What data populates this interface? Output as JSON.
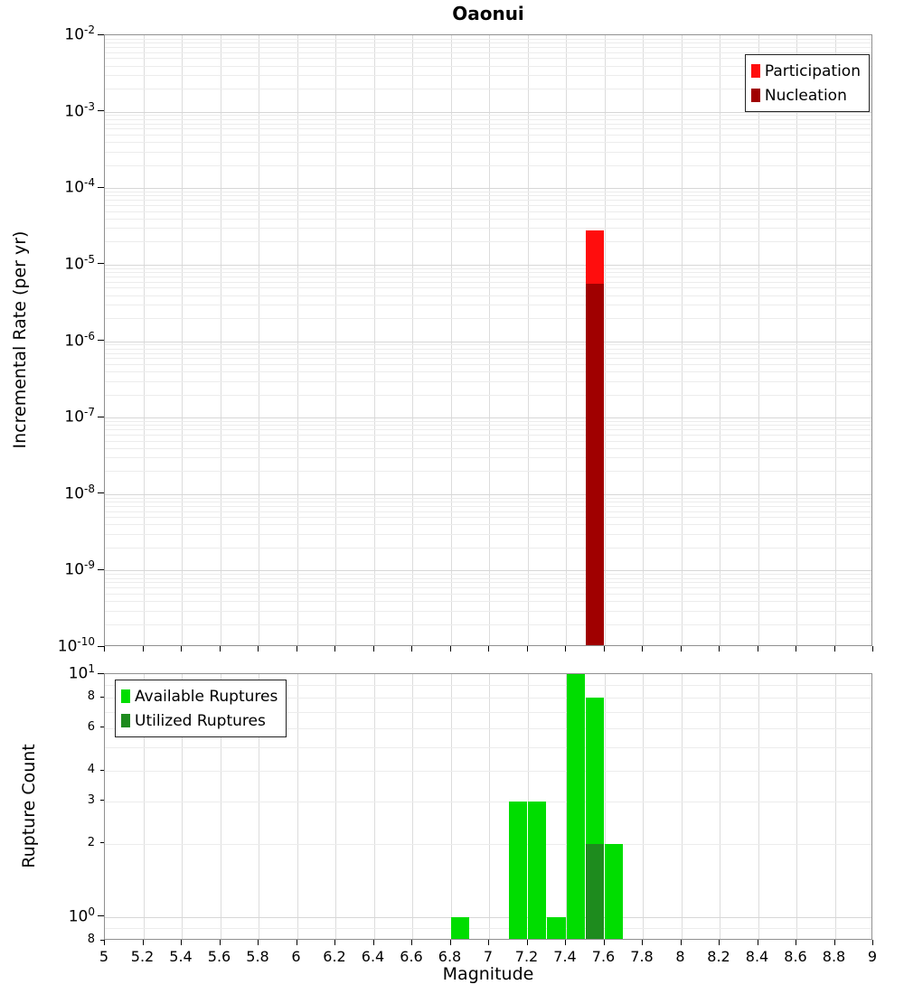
{
  "title": "Oaonui",
  "xlabel": "Magnitude",
  "x_axis": {
    "min": 5,
    "max": 9,
    "tick_step": 0.2,
    "tick_labels": [
      "5",
      "5.2",
      "5.4",
      "5.6",
      "5.8",
      "6",
      "6.2",
      "6.4",
      "6.6",
      "6.8",
      "7",
      "7.2",
      "7.4",
      "7.6",
      "7.8",
      "8",
      "8.2",
      "8.4",
      "8.6",
      "8.8",
      "9"
    ]
  },
  "chart_data": [
    {
      "id": "rate",
      "type": "bar",
      "title": "Oaonui",
      "ylabel": "Incremental Rate (per yr)",
      "yscale": "log",
      "ylim": [
        1e-10,
        0.01
      ],
      "xlim": [
        5,
        9
      ],
      "grid": true,
      "legend_position": "top-right",
      "legend": [
        {
          "label": "Participation",
          "color": "#ff0d0d"
        },
        {
          "label": "Nucleation",
          "color": "#a00000"
        }
      ],
      "major_ticks": [
        {
          "value": 0.01,
          "exp": -2
        },
        {
          "value": 0.001,
          "exp": -3
        },
        {
          "value": 0.0001,
          "exp": -4
        },
        {
          "value": 1e-05,
          "exp": -5
        },
        {
          "value": 1e-06,
          "exp": -6
        },
        {
          "value": 1e-07,
          "exp": -7
        },
        {
          "value": 1e-08,
          "exp": -8
        },
        {
          "value": 1e-09,
          "exp": -9
        },
        {
          "value": 1e-10,
          "exp": -10
        }
      ],
      "series": [
        {
          "name": "Participation",
          "color": "#ff0d0d",
          "bars": [
            {
              "center": 7.55,
              "width": 0.1,
              "value": 2.8e-05
            }
          ]
        },
        {
          "name": "Nucleation",
          "color": "#a00000",
          "bars": [
            {
              "center": 7.55,
              "width": 0.1,
              "value": 5.6e-06
            }
          ]
        }
      ]
    },
    {
      "id": "count",
      "type": "bar",
      "ylabel": "Rupture Count",
      "yscale": "log",
      "ylim": [
        0.8,
        10
      ],
      "xlim": [
        5,
        9
      ],
      "grid": true,
      "legend_position": "top-left",
      "legend": [
        {
          "label": "Available Ruptures",
          "color": "#00dd00"
        },
        {
          "label": "Utilized Ruptures",
          "color": "#1e8b1e"
        }
      ],
      "major_ticks": [
        {
          "value": 10,
          "exp": 1
        },
        {
          "value": 1,
          "exp": 0
        }
      ],
      "minor_tick_labels": [
        {
          "value": 8,
          "label": "8"
        },
        {
          "value": 6,
          "label": "6"
        },
        {
          "value": 4,
          "label": "4"
        },
        {
          "value": 3,
          "label": "3"
        },
        {
          "value": 2,
          "label": "2"
        },
        {
          "value": 0.8,
          "label": "8"
        }
      ],
      "series": [
        {
          "name": "Available Ruptures",
          "color": "#00dd00",
          "bars": [
            {
              "center": 6.85,
              "width": 0.1,
              "value": 1
            },
            {
              "center": 7.15,
              "width": 0.1,
              "value": 3
            },
            {
              "center": 7.25,
              "width": 0.1,
              "value": 3
            },
            {
              "center": 7.35,
              "width": 0.1,
              "value": 1
            },
            {
              "center": 7.45,
              "width": 0.1,
              "value": 10
            },
            {
              "center": 7.55,
              "width": 0.1,
              "value": 8
            },
            {
              "center": 7.65,
              "width": 0.1,
              "value": 2
            }
          ]
        },
        {
          "name": "Utilized Ruptures",
          "color": "#1e8b1e",
          "bars": [
            {
              "center": 7.55,
              "width": 0.1,
              "value": 2
            }
          ]
        }
      ]
    }
  ]
}
